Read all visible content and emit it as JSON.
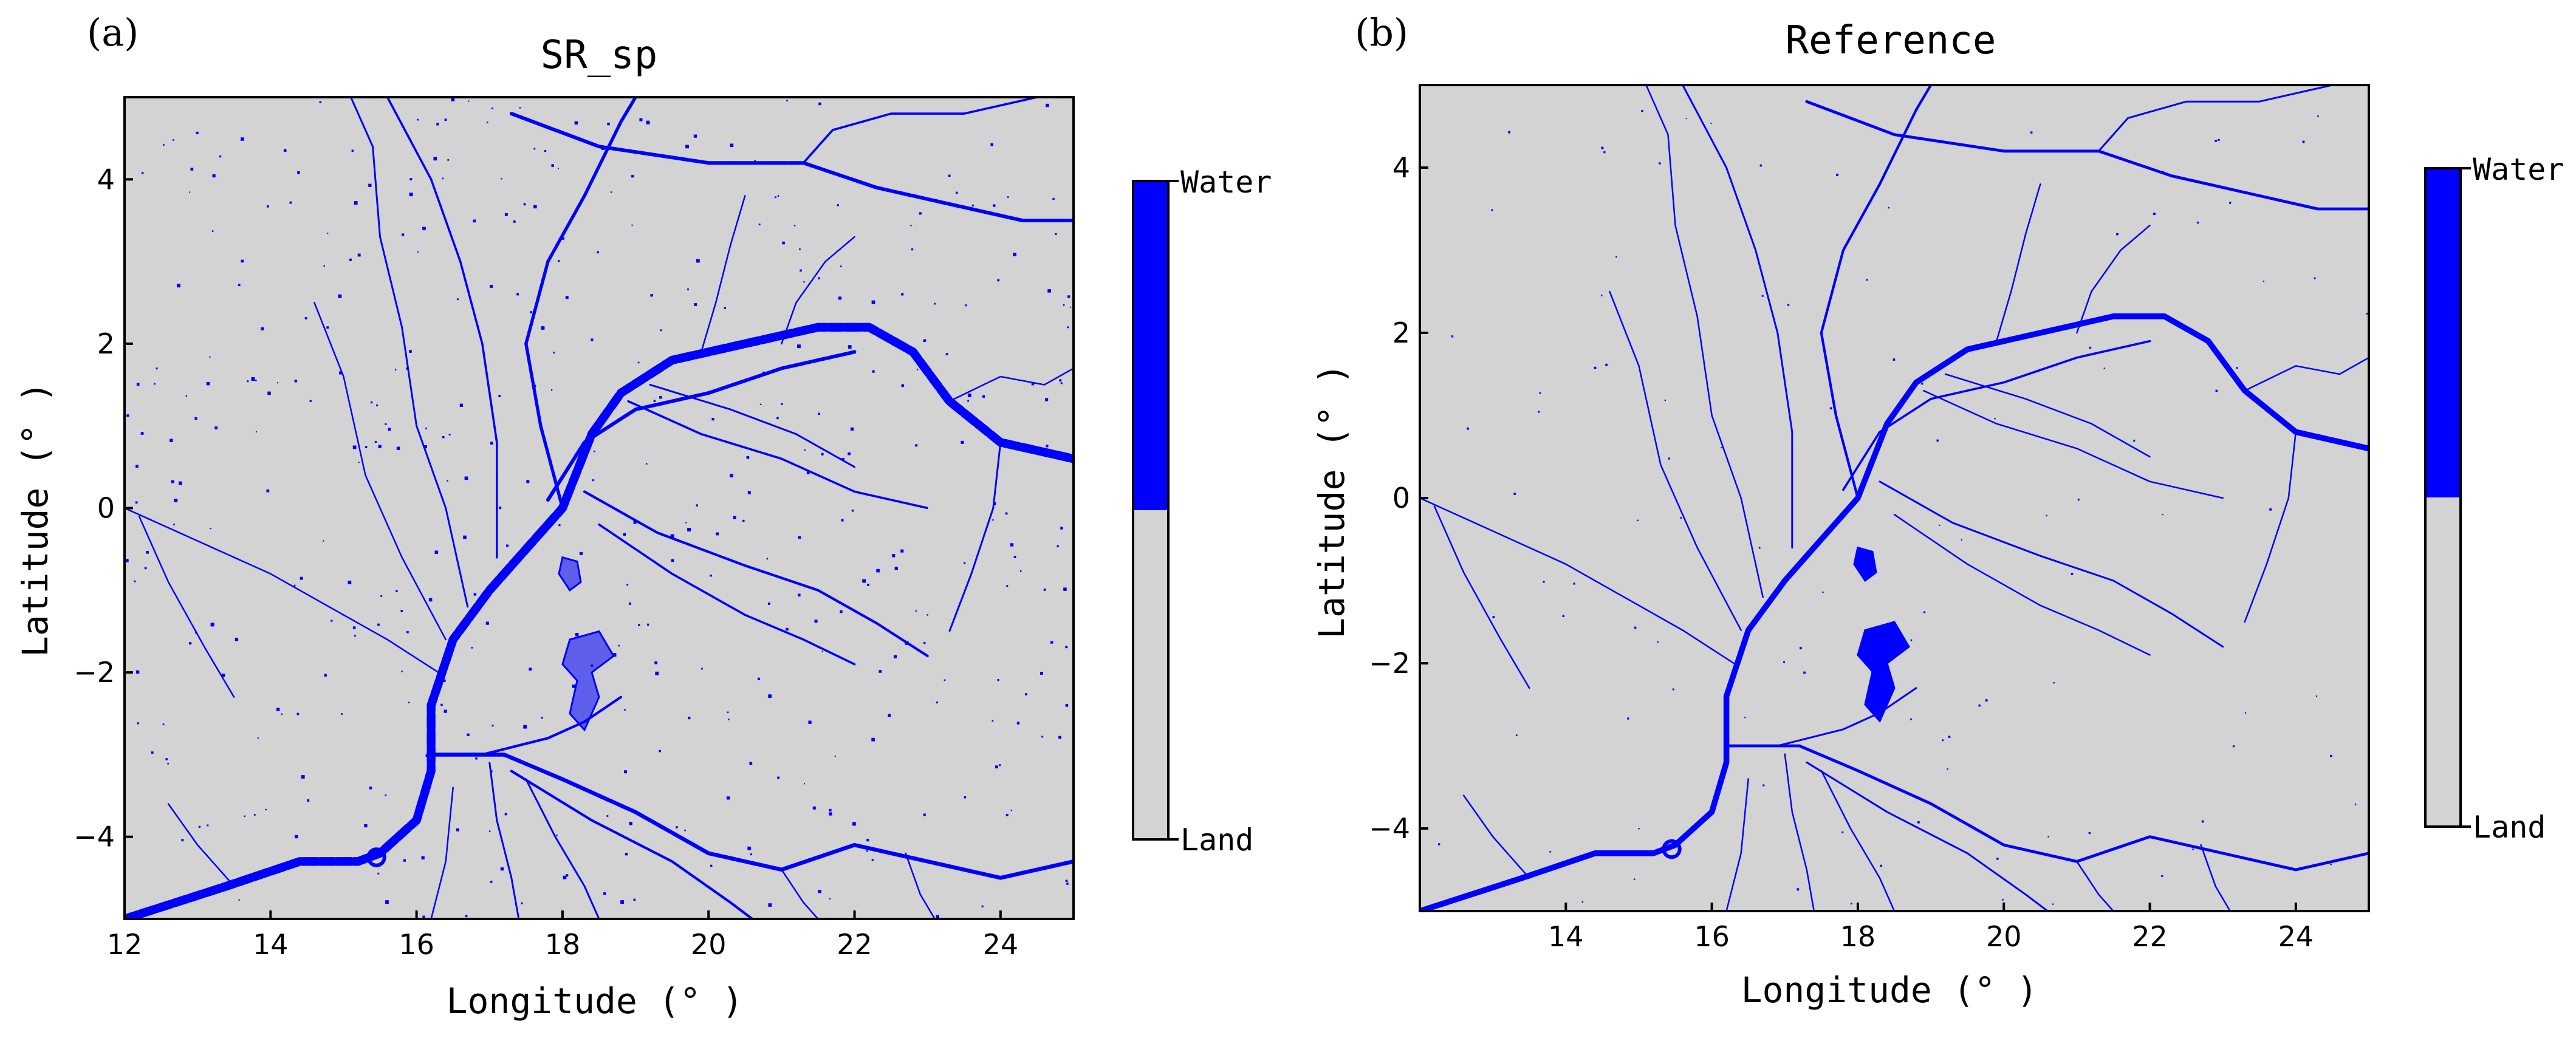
{
  "chart_data": [
    {
      "type": "heatmap",
      "panel_label": "(a)",
      "title": "SR_sp",
      "xlabel": "Longitude (° )",
      "ylabel": "Latitude (° )",
      "xlim": [
        12,
        25
      ],
      "ylim": [
        -5,
        5
      ],
      "x_ticks": [
        12,
        14,
        16,
        18,
        20,
        22,
        24
      ],
      "y_ticks": [
        -4,
        -2,
        0,
        2,
        4
      ],
      "grid": false,
      "classes": [
        {
          "name": "Land",
          "color": "#d3d3d3"
        },
        {
          "name": "Water",
          "color": "#0000ff"
        }
      ],
      "colorbar": {
        "top_label": "Water",
        "bottom_label": "Land"
      }
    },
    {
      "type": "heatmap",
      "panel_label": "(b)",
      "title": "Reference",
      "xlabel": "Longitude (° )",
      "ylabel": "Latitude (° )",
      "xlim": [
        12,
        25
      ],
      "ylim": [
        -5,
        5
      ],
      "x_ticks": [
        14,
        16,
        18,
        20,
        22,
        24
      ],
      "y_ticks": [
        -4,
        -2,
        0,
        2,
        4
      ],
      "grid": false,
      "classes": [
        {
          "name": "Land",
          "color": "#d3d3d3"
        },
        {
          "name": "Water",
          "color": "#0000ff"
        }
      ],
      "colorbar": {
        "top_label": "Water",
        "bottom_label": "Land"
      }
    }
  ],
  "rivers": [
    {
      "name": "main-congo",
      "w": [
        2.4,
        1.6
      ],
      "pts": [
        [
          12.0,
          -5.0
        ],
        [
          13.4,
          -4.6
        ],
        [
          14.4,
          -4.3
        ],
        [
          15.2,
          -4.3
        ],
        [
          15.5,
          -4.2
        ],
        [
          16.0,
          -3.8
        ],
        [
          16.2,
          -3.2
        ],
        [
          16.2,
          -2.4
        ],
        [
          16.5,
          -1.6
        ],
        [
          17.0,
          -1.0
        ],
        [
          17.5,
          -0.5
        ],
        [
          18.0,
          0.0
        ],
        [
          18.4,
          0.9
        ],
        [
          18.8,
          1.4
        ],
        [
          19.5,
          1.8
        ],
        [
          20.5,
          2.0
        ],
        [
          21.5,
          2.2
        ],
        [
          22.2,
          2.2
        ],
        [
          22.8,
          1.9
        ],
        [
          23.3,
          1.3
        ],
        [
          24.0,
          0.8
        ],
        [
          25.0,
          0.6
        ]
      ]
    },
    {
      "name": "inner-anabranch",
      "w": [
        1.0,
        0.6
      ],
      "pts": [
        [
          17.8,
          0.1
        ],
        [
          18.3,
          0.8
        ],
        [
          19.0,
          1.2
        ],
        [
          20.0,
          1.4
        ],
        [
          21.0,
          1.7
        ],
        [
          22.0,
          1.9
        ]
      ]
    },
    {
      "name": "ubangi",
      "w": [
        0.9,
        0.7
      ],
      "pts": [
        [
          18.0,
          0.0
        ],
        [
          17.7,
          1.0
        ],
        [
          17.5,
          2.0
        ],
        [
          17.8,
          3.0
        ],
        [
          18.3,
          3.8
        ],
        [
          18.8,
          4.7
        ],
        [
          19.0,
          5.0
        ]
      ]
    },
    {
      "name": "north-a",
      "w": [
        0.6,
        0.5
      ],
      "pts": [
        [
          17.1,
          -0.6
        ],
        [
          17.1,
          0.8
        ],
        [
          16.9,
          2.0
        ],
        [
          16.6,
          3.0
        ],
        [
          16.2,
          4.0
        ],
        [
          15.6,
          5.0
        ]
      ]
    },
    {
      "name": "north-b",
      "w": [
        0.5,
        0.4
      ],
      "pts": [
        [
          16.7,
          -1.2
        ],
        [
          16.4,
          0.0
        ],
        [
          16.0,
          1.0
        ],
        [
          15.8,
          2.2
        ],
        [
          15.5,
          3.3
        ],
        [
          15.4,
          4.4
        ],
        [
          15.1,
          5.0
        ]
      ]
    },
    {
      "name": "north-c",
      "w": [
        0.4,
        0.3
      ],
      "pts": [
        [
          16.4,
          -1.6
        ],
        [
          15.8,
          -0.6
        ],
        [
          15.3,
          0.4
        ],
        [
          15.0,
          1.6
        ],
        [
          14.6,
          2.5
        ]
      ]
    },
    {
      "name": "west-sangha",
      "w": [
        0.4,
        0.3
      ],
      "pts": [
        [
          16.3,
          -2.0
        ],
        [
          15.6,
          -1.6
        ],
        [
          14.8,
          -1.2
        ],
        [
          14.0,
          -0.8
        ],
        [
          13.0,
          -0.4
        ],
        [
          12.0,
          0.0
        ]
      ]
    },
    {
      "name": "west-trib-2",
      "w": [
        0.35,
        0.3
      ],
      "pts": [
        [
          12.2,
          -0.1
        ],
        [
          12.6,
          -0.9
        ],
        [
          13.1,
          -1.7
        ],
        [
          13.5,
          -2.3
        ]
      ]
    },
    {
      "name": "kasai-north",
      "w": [
        1.1,
        0.8
      ],
      "pts": [
        [
          16.2,
          -3.0
        ],
        [
          17.2,
          -3.0
        ],
        [
          18.0,
          -3.3
        ],
        [
          19.0,
          -3.7
        ],
        [
          20.0,
          -4.2
        ],
        [
          21.0,
          -4.4
        ],
        [
          22.0,
          -4.1
        ],
        [
          23.0,
          -4.3
        ],
        [
          24.0,
          -4.5
        ],
        [
          25.0,
          -4.3
        ]
      ]
    },
    {
      "name": "kasai-south",
      "w": [
        0.7,
        0.5
      ],
      "pts": [
        [
          17.3,
          -3.2
        ],
        [
          18.4,
          -3.8
        ],
        [
          19.5,
          -4.3
        ],
        [
          20.3,
          -4.8
        ],
        [
          20.6,
          -5.0
        ]
      ]
    },
    {
      "name": "lake-mai-ndombe-link",
      "w": [
        0.7,
        0.5
      ],
      "pts": [
        [
          16.9,
          -3.0
        ],
        [
          17.8,
          -2.8
        ],
        [
          18.3,
          -2.6
        ],
        [
          18.8,
          -2.3
        ]
      ]
    },
    {
      "name": "kwango",
      "w": [
        0.5,
        0.4
      ],
      "pts": [
        [
          17.0,
          -3.1
        ],
        [
          17.1,
          -3.8
        ],
        [
          17.3,
          -4.5
        ],
        [
          17.4,
          -5.0
        ]
      ]
    },
    {
      "name": "kwilu",
      "w": [
        0.5,
        0.4
      ],
      "pts": [
        [
          17.5,
          -3.3
        ],
        [
          17.9,
          -4.0
        ],
        [
          18.3,
          -4.6
        ],
        [
          18.5,
          -5.0
        ]
      ]
    },
    {
      "name": "south-trib",
      "w": [
        0.4,
        0.3
      ],
      "pts": [
        [
          16.5,
          -3.4
        ],
        [
          16.4,
          -4.3
        ],
        [
          16.2,
          -5.0
        ]
      ]
    },
    {
      "name": "east-ruki",
      "w": [
        0.7,
        0.5
      ],
      "pts": [
        [
          18.3,
          0.2
        ],
        [
          19.3,
          -0.3
        ],
        [
          20.5,
          -0.7
        ],
        [
          21.5,
          -1.0
        ],
        [
          22.3,
          -1.4
        ],
        [
          23.0,
          -1.8
        ]
      ]
    },
    {
      "name": "east-lulonga",
      "w": [
        0.6,
        0.4
      ],
      "pts": [
        [
          18.9,
          1.3
        ],
        [
          19.9,
          0.9
        ],
        [
          21.0,
          0.6
        ],
        [
          22.0,
          0.2
        ],
        [
          23.0,
          0.0
        ]
      ]
    },
    {
      "name": "east-tshuapa",
      "w": [
        0.6,
        0.4
      ],
      "pts": [
        [
          18.5,
          -0.2
        ],
        [
          19.5,
          -0.8
        ],
        [
          20.5,
          -1.3
        ],
        [
          21.3,
          -1.6
        ],
        [
          22.0,
          -1.9
        ]
      ]
    },
    {
      "name": "east-ikelemba",
      "w": [
        0.5,
        0.4
      ],
      "pts": [
        [
          19.2,
          1.5
        ],
        [
          20.3,
          1.2
        ],
        [
          21.2,
          0.9
        ],
        [
          22.0,
          0.5
        ]
      ]
    },
    {
      "name": "far-east-trib",
      "w": [
        0.5,
        0.4
      ],
      "pts": [
        [
          24.0,
          0.8
        ],
        [
          23.9,
          0.0
        ],
        [
          23.6,
          -0.8
        ],
        [
          23.3,
          -1.5
        ]
      ]
    },
    {
      "name": "far-east-trib-2",
      "w": [
        0.4,
        0.3
      ],
      "pts": [
        [
          23.3,
          1.3
        ],
        [
          24.0,
          1.6
        ],
        [
          24.6,
          1.5
        ],
        [
          25.0,
          1.7
        ]
      ]
    },
    {
      "name": "north-east-river",
      "w": [
        1.0,
        0.8
      ],
      "pts": [
        [
          17.3,
          4.8
        ],
        [
          18.5,
          4.4
        ],
        [
          20.0,
          4.2
        ],
        [
          21.3,
          4.2
        ],
        [
          22.3,
          3.9
        ],
        [
          23.3,
          3.7
        ],
        [
          24.3,
          3.5
        ],
        [
          25.0,
          3.5
        ]
      ]
    },
    {
      "name": "north-east-upper",
      "w": [
        0.6,
        0.5
      ],
      "pts": [
        [
          21.3,
          4.2
        ],
        [
          21.7,
          4.6
        ],
        [
          22.5,
          4.8
        ],
        [
          23.5,
          4.8
        ],
        [
          24.5,
          5.0
        ]
      ]
    },
    {
      "name": "mid-north-trib",
      "w": [
        0.4,
        0.3
      ],
      "pts": [
        [
          19.9,
          1.9
        ],
        [
          20.1,
          2.5
        ],
        [
          20.3,
          3.2
        ],
        [
          20.5,
          3.8
        ]
      ]
    },
    {
      "name": "mid-north-trib-2",
      "w": [
        0.4,
        0.3
      ],
      "pts": [
        [
          21.0,
          2.0
        ],
        [
          21.2,
          2.5
        ],
        [
          21.6,
          3.0
        ],
        [
          22.0,
          3.3
        ]
      ]
    },
    {
      "name": "south-east-trib",
      "w": [
        0.4,
        0.3
      ],
      "pts": [
        [
          21.0,
          -4.4
        ],
        [
          21.3,
          -4.8
        ],
        [
          21.5,
          -5.0
        ]
      ]
    },
    {
      "name": "south-east-trib-2",
      "w": [
        0.4,
        0.3
      ],
      "pts": [
        [
          22.7,
          -4.2
        ],
        [
          22.9,
          -4.7
        ],
        [
          23.1,
          -5.0
        ]
      ]
    },
    {
      "name": "west-trib-3",
      "w": [
        0.35,
        0.3
      ],
      "pts": [
        [
          12.6,
          -3.6
        ],
        [
          13.0,
          -4.1
        ],
        [
          13.5,
          -4.6
        ]
      ]
    }
  ],
  "lakes": [
    {
      "name": "lake-mai-ndombe",
      "pts": [
        [
          18.1,
          -1.6
        ],
        [
          18.5,
          -1.5
        ],
        [
          18.7,
          -1.8
        ],
        [
          18.4,
          -2.0
        ],
        [
          18.5,
          -2.3
        ],
        [
          18.3,
          -2.7
        ],
        [
          18.1,
          -2.5
        ],
        [
          18.2,
          -2.1
        ],
        [
          18.0,
          -1.9
        ]
      ]
    },
    {
      "name": "lake-tumba",
      "pts": [
        [
          18.0,
          -0.6
        ],
        [
          18.2,
          -0.65
        ],
        [
          18.25,
          -0.9
        ],
        [
          18.1,
          -1.0
        ],
        [
          17.95,
          -0.8
        ]
      ]
    }
  ],
  "pool": {
    "name": "pool-malebo",
    "cx": 15.45,
    "cy": -4.25,
    "r": 0.11
  },
  "noise_dots": {
    "a": 420,
    "b": 110
  }
}
